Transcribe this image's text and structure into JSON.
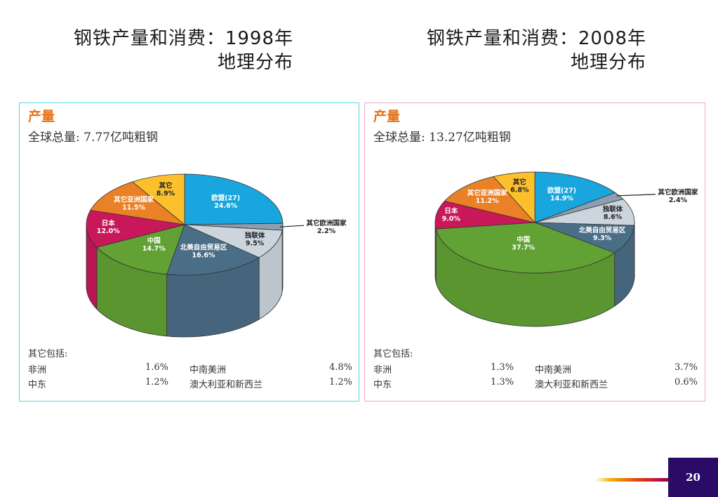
{
  "titles": {
    "left": {
      "line1": "钢铁产量和消费：1998年",
      "line2": "地理分布"
    },
    "right": {
      "line1": "钢铁产量和消费：2008年",
      "line2": "地理分布"
    }
  },
  "page_number": "20",
  "chart_data": [
    {
      "type": "pie",
      "heading": "产量",
      "subtitle": "全球总量: 7.77亿吨粗钢",
      "slices": [
        {
          "label": "欧盟(27)",
          "value": 24.6,
          "value_label": "24.6%",
          "color": "#19a6de"
        },
        {
          "label": "其它欧洲国家",
          "value": 2.2,
          "value_label": "2.2%",
          "color": "#8c9fb1"
        },
        {
          "label": "独联体",
          "value": 9.5,
          "value_label": "9.5%",
          "color": "#ccd5de"
        },
        {
          "label": "北美自由贸易区",
          "value": 16.6,
          "value_label": "16.6%",
          "color": "#4b6e87"
        },
        {
          "label": "中国",
          "value": 14.7,
          "value_label": "14.7%",
          "color": "#62a234"
        },
        {
          "label": "日本",
          "value": 12.0,
          "value_label": "12.0%",
          "color": "#c8185a"
        },
        {
          "label": "其它亚洲国家",
          "value": 11.5,
          "value_label": "11.5%",
          "color": "#ea8127"
        },
        {
          "label": "其它",
          "value": 8.9,
          "value_label": "8.9%",
          "color": "#fcc02d"
        }
      ],
      "others": {
        "heading": "其它包括:",
        "items": [
          {
            "name": "非洲",
            "value": "1.6%"
          },
          {
            "name": "中南美洲",
            "value": "4.8%"
          },
          {
            "name": "中东",
            "value": "1.2%"
          },
          {
            "name": "澳大利亚和新西兰",
            "value": "1.2%"
          }
        ]
      }
    },
    {
      "type": "pie",
      "heading": "产量",
      "subtitle": "全球总量: 13.27亿吨粗钢",
      "slices": [
        {
          "label": "欧盟(27)",
          "value": 14.9,
          "value_label": "14.9%",
          "color": "#19a6de"
        },
        {
          "label": "其它欧洲国家",
          "value": 2.4,
          "value_label": "2.4%",
          "color": "#8c9fb1"
        },
        {
          "label": "独联体",
          "value": 8.6,
          "value_label": "8.6%",
          "color": "#ccd5de"
        },
        {
          "label": "北美自由贸易区",
          "value": 9.3,
          "value_label": "9.3%",
          "color": "#4b6e87"
        },
        {
          "label": "中国",
          "value": 37.7,
          "value_label": "37.7%",
          "color": "#62a234"
        },
        {
          "label": "日本",
          "value": 9.0,
          "value_label": "9.0%",
          "color": "#c8185a"
        },
        {
          "label": "其它亚洲国家",
          "value": 11.2,
          "value_label": "11.2%",
          "color": "#ea8127"
        },
        {
          "label": "其它",
          "value": 6.8,
          "value_label": "6.8%",
          "color": "#fcc02d"
        }
      ],
      "others": {
        "heading": "其它包括:",
        "items": [
          {
            "name": "非洲",
            "value": "1.3%"
          },
          {
            "name": "中南美洲",
            "value": "3.7%"
          },
          {
            "name": "中东",
            "value": "1.3%"
          },
          {
            "name": "澳大利亚和新西兰",
            "value": "0.6%"
          }
        ]
      }
    }
  ]
}
